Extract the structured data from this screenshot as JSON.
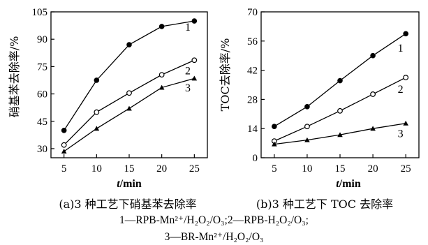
{
  "chart_data": [
    {
      "type": "line",
      "caption": "(a)3 种工艺下硝基苯去除率",
      "ylabel": "硝基苯去除率/%",
      "xlabel_italic": "t",
      "xlabel_unit": "/min",
      "x": [
        5,
        10,
        15,
        20,
        25
      ],
      "xlim": [
        3,
        27
      ],
      "ylim": [
        25,
        105
      ],
      "yticks": [
        30,
        45,
        60,
        75,
        90,
        105
      ],
      "series": [
        {
          "id": "1",
          "marker": "filled-circle",
          "values": [
            40,
            67.5,
            87,
            97,
            100
          ]
        },
        {
          "id": "2",
          "marker": "open-circle",
          "values": [
            32,
            50,
            60.5,
            70.5,
            78.5
          ]
        },
        {
          "id": "3",
          "marker": "filled-triangle",
          "values": [
            28.5,
            41,
            52,
            63.5,
            68.5
          ]
        }
      ]
    },
    {
      "type": "line",
      "caption": "(b)3 种工艺下 TOC 去除率",
      "ylabel": "TOC去除率/%",
      "xlabel_italic": "t",
      "xlabel_unit": "/min",
      "x": [
        5,
        10,
        15,
        20,
        25
      ],
      "xlim": [
        3,
        27
      ],
      "ylim": [
        0,
        70
      ],
      "yticks": [
        0,
        14,
        28,
        42,
        56,
        70
      ],
      "series": [
        {
          "id": "1",
          "marker": "filled-circle",
          "values": [
            15,
            24.5,
            37,
            49,
            59.5
          ]
        },
        {
          "id": "2",
          "marker": "open-circle",
          "values": [
            8,
            15,
            22.5,
            30.5,
            38.5
          ]
        },
        {
          "id": "3",
          "marker": "filled-triangle",
          "values": [
            6.5,
            8.5,
            11,
            14,
            16.5
          ]
        }
      ]
    }
  ],
  "legend": {
    "line1": "1—RPB-Mn²⁺/H₂O₂/O₃;2—RPB-H₂O₂/O₃;",
    "line2": "3—BR-Mn²⁺/H₂O₂/O₃"
  }
}
